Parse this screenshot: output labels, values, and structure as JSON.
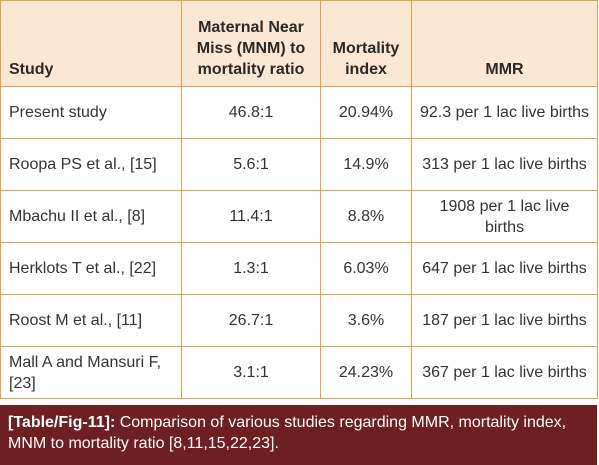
{
  "table": {
    "header": [
      "Study",
      "Maternal Near Miss (MNM) to mortality ratio",
      "Mortality index",
      "MMR"
    ],
    "rows": [
      [
        "Present study",
        "46.8:1",
        "20.94%",
        "92.3 per 1 lac live births"
      ],
      [
        "Roopa PS et al., [15]",
        "5.6:1",
        "14.9%",
        "313 per 1 lac live births"
      ],
      [
        "Mbachu II et al., [8]",
        "11.4:1",
        "8.8%",
        "1908 per 1 lac live births"
      ],
      [
        "Herklots T et al., [22]",
        "1.3:1",
        "6.03%",
        "647 per 1 lac live births"
      ],
      [
        "Roost M et al., [11]",
        "26.7:1",
        "3.6%",
        "187 per 1 lac live births"
      ],
      [
        "Mall A and Mansuri F, [23]",
        "3.1:1",
        "24.23%",
        "367 per 1 lac live births"
      ]
    ]
  },
  "caption": {
    "label": "[Table/Fig-11]:",
    "text": "Comparison of various studies regarding MMR, mortality index, MNM to mortality ratio [8,11,15,22,23]."
  }
}
